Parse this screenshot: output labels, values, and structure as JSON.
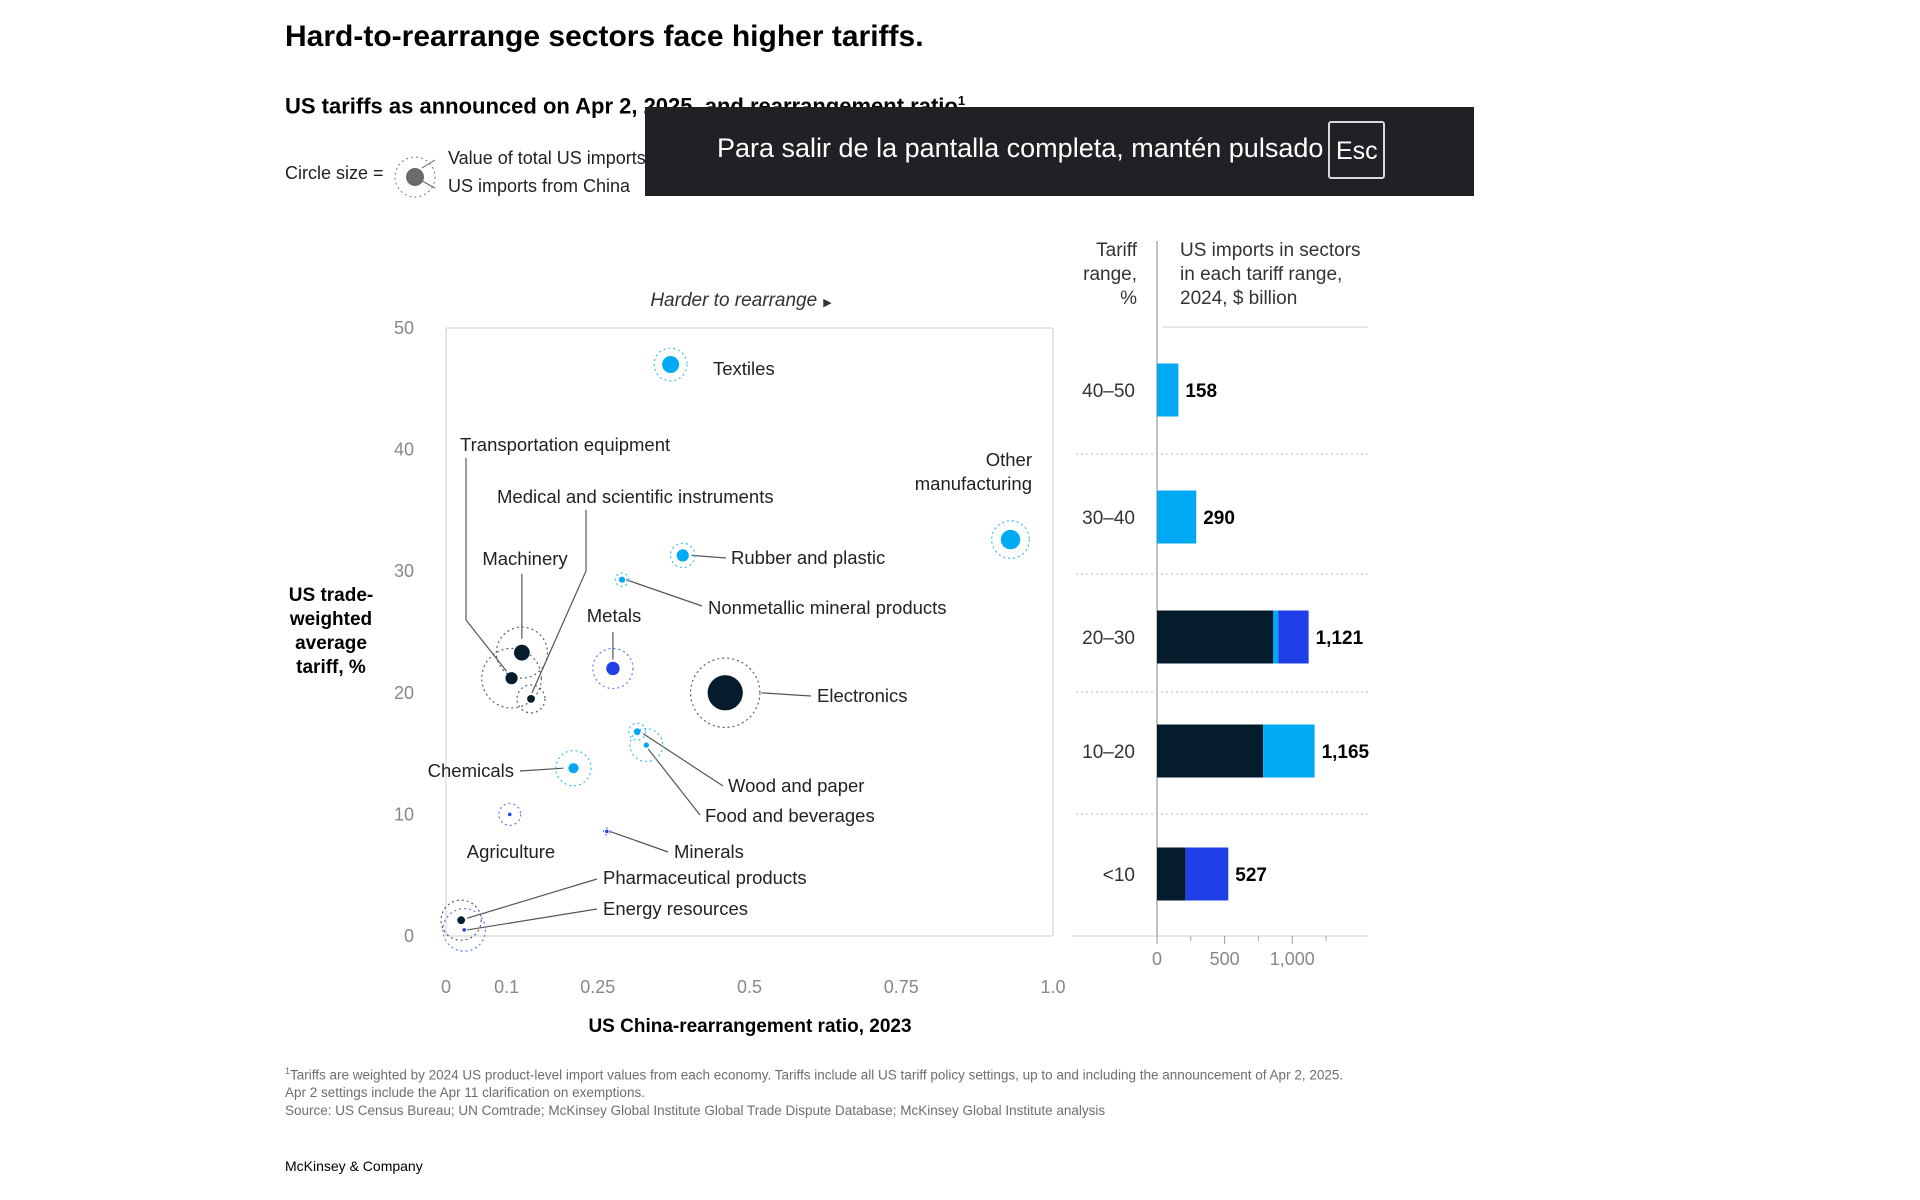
{
  "title": "Hard-to-rearrange sectors face higher tariffs.",
  "subtitle": "US tariffs as announced on Apr 2, 2025, and rearrangement ratio",
  "subtitle_footnote_ref": "1",
  "legend": {
    "prefix": "Circle size =",
    "outer_label": "Value of total US imports",
    "inner_label": "US imports from China"
  },
  "fullscreen_notice": {
    "message": "Para salir de la pantalla completa, mantén pulsado",
    "key": "Esc"
  },
  "colors": {
    "navy": "#051c2c",
    "cyan": "#00a9f4",
    "blue": "#1f40e6",
    "grid": "#cccccc"
  },
  "chart_data": [
    {
      "type": "scatter",
      "title": "US tariffs as announced on Apr 2, 2025, and rearrangement ratio",
      "xlabel": "US China-rearrangement ratio, 2023",
      "ylabel": "US trade-weighted average tariff, %",
      "direction_label": "Harder to rearrange",
      "xlim": [
        0,
        1.0
      ],
      "ylim": [
        0,
        50
      ],
      "xticks": [
        0,
        0.1,
        0.25,
        0.5,
        0.75,
        1.0
      ],
      "xtick_labels": [
        "0",
        "0.1",
        "0.25",
        "0.5",
        "0.75",
        "1.0"
      ],
      "yticks": [
        0,
        10,
        20,
        30,
        40,
        50
      ],
      "points": [
        {
          "name": "Textiles",
          "x": 0.37,
          "y": 47,
          "inner": 0.7,
          "outer": 1.35,
          "color": "cyan"
        },
        {
          "name": "Other manufacturing",
          "x": 0.93,
          "y": 32.6,
          "inner": 0.8,
          "outer": 1.55,
          "color": "cyan"
        },
        {
          "name": "Rubber and plastic",
          "x": 0.39,
          "y": 31.3,
          "inner": 0.5,
          "outer": 1.0,
          "color": "cyan"
        },
        {
          "name": "Nonmetallic mineral products",
          "x": 0.29,
          "y": 29.3,
          "inner": 0.25,
          "outer": 0.55,
          "color": "cyan"
        },
        {
          "name": "Metals",
          "x": 0.275,
          "y": 22,
          "inner": 0.55,
          "outer": 1.65,
          "color": "blue"
        },
        {
          "name": "Electronics",
          "x": 0.46,
          "y": 20,
          "inner": 1.45,
          "outer": 2.85,
          "color": "navy"
        },
        {
          "name": "Machinery",
          "x": 0.125,
          "y": 23.3,
          "inner": 0.65,
          "outer": 2.1,
          "color": "navy"
        },
        {
          "name": "Transportation equipment",
          "x": 0.108,
          "y": 21.2,
          "inner": 0.5,
          "outer": 2.45,
          "color": "navy"
        },
        {
          "name": "Medical and scientific instruments",
          "x": 0.14,
          "y": 19.5,
          "inner": 0.32,
          "outer": 1.15,
          "color": "navy"
        },
        {
          "name": "Wood and paper",
          "x": 0.315,
          "y": 16.8,
          "inner": 0.28,
          "outer": 0.7,
          "color": "cyan"
        },
        {
          "name": "Food and beverages",
          "x": 0.33,
          "y": 15.7,
          "inner": 0.22,
          "outer": 1.35,
          "color": "cyan"
        },
        {
          "name": "Chemicals",
          "x": 0.21,
          "y": 13.8,
          "inner": 0.42,
          "outer": 1.45,
          "color": "cyan"
        },
        {
          "name": "Agriculture",
          "x": 0.105,
          "y": 10,
          "inner": 0.1,
          "outer": 0.9,
          "color": "blue"
        },
        {
          "name": "Minerals",
          "x": 0.265,
          "y": 8.6,
          "inner": 0.05,
          "outer": 0.28,
          "color": "blue"
        },
        {
          "name": "Pharmaceutical products",
          "x": 0.025,
          "y": 1.3,
          "inner": 0.32,
          "outer": 1.65,
          "color": "navy"
        },
        {
          "name": "Energy resources",
          "x": 0.03,
          "y": 0.5,
          "inner": 0.06,
          "outer": 1.75,
          "color": "blue"
        }
      ]
    },
    {
      "type": "bar",
      "orientation": "horizontal",
      "stacked": true,
      "category_header": "Tariff range, %",
      "value_header": "US imports in sectors in each tariff range, 2024, $ billion",
      "categories": [
        "40–50",
        "30–40",
        "20–30",
        "10–20",
        "<10"
      ],
      "totals": [
        158,
        290,
        1121,
        1165,
        527
      ],
      "total_labels": [
        "158",
        "290",
        "1,121",
        "1,165",
        "527"
      ],
      "series": [
        {
          "name": "navy",
          "values": [
            0,
            0,
            860,
            785,
            210
          ]
        },
        {
          "name": "cyan",
          "values": [
            158,
            290,
            36,
            380,
            0
          ]
        },
        {
          "name": "blue",
          "values": [
            0,
            0,
            225,
            0,
            317
          ]
        }
      ],
      "xlim": [
        0,
        1560
      ],
      "xticks": [
        0,
        500,
        1000
      ],
      "xtick_labels": [
        "0",
        "500",
        "1,000"
      ]
    }
  ],
  "footnote": {
    "marker": "1",
    "text": "Tariffs are weighted by 2024 US product-level import values from each economy. Tariffs include all US tariff policy settings, up to and including the announcement of Apr 2, 2025. Apr 2 settings include the Apr 11 clarification on exemptions.",
    "source": "Source: US Census Bureau; UN Comtrade; McKinsey Global Institute Global Trade Dispute Database; McKinsey Global Institute analysis"
  },
  "brand": "McKinsey & Company"
}
